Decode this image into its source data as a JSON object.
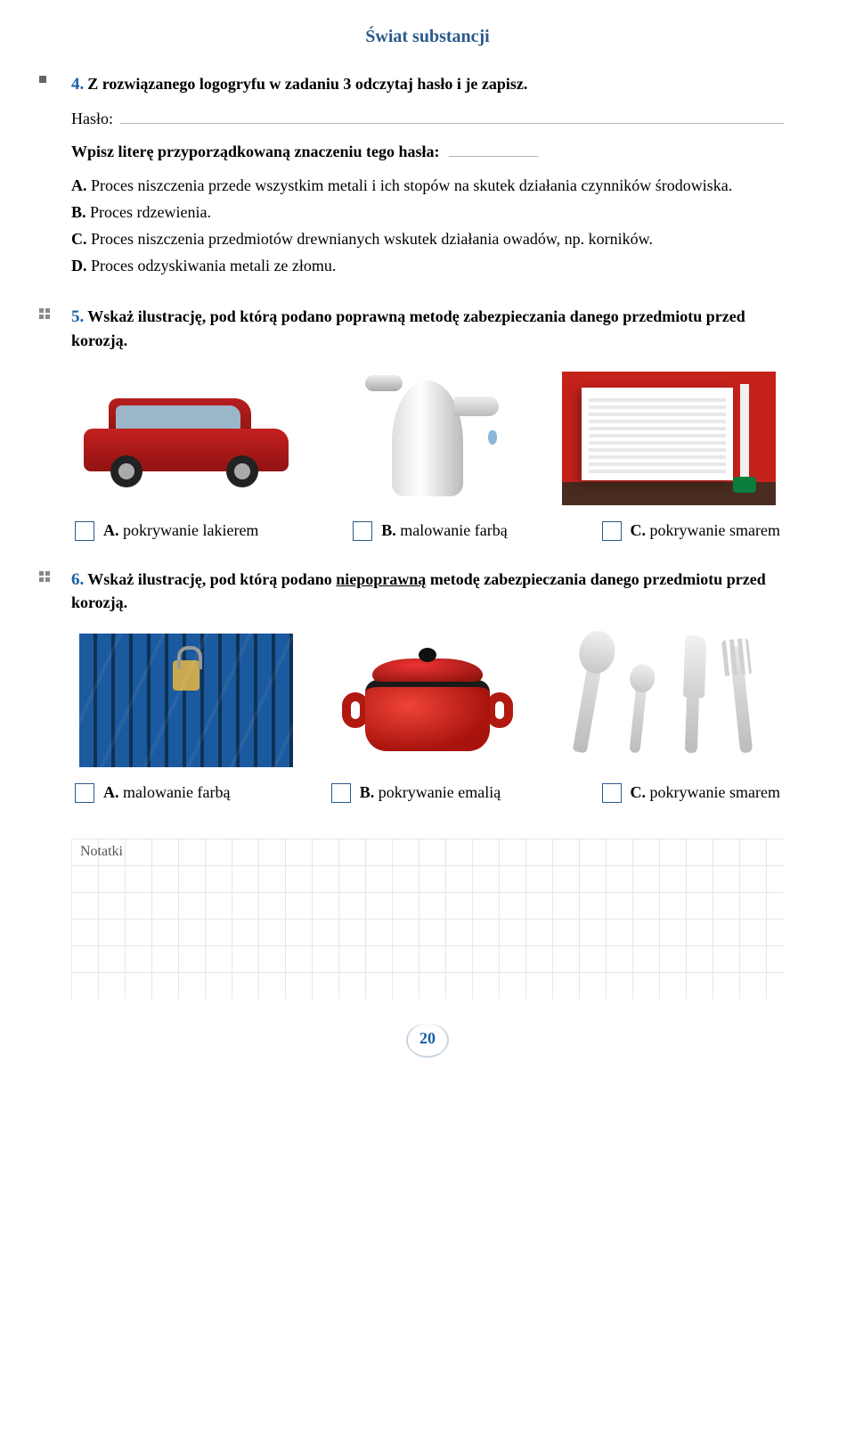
{
  "chapter_title": "Świat substancji",
  "task4": {
    "number": "4.",
    "text": "Z rozwiązanego logogryfu w zadaniu 3 odczytaj hasło i je zapisz.",
    "haslo_label": "Hasło:",
    "wpisz_label": "Wpisz literę przyporządkowaną znaczeniu tego hasła:",
    "options": {
      "A": {
        "letter": "A.",
        "text": "Proces niszczenia przede wszystkim metali i ich stopów na skutek działania czynników środowiska."
      },
      "B": {
        "letter": "B.",
        "text": "Proces rdzewienia."
      },
      "C": {
        "letter": "C.",
        "text": "Proces niszczenia przedmiotów drewnianych wskutek działania owadów, np. korników."
      },
      "D": {
        "letter": "D.",
        "text": "Proces odzyskiwania metali ze złomu."
      }
    }
  },
  "task5": {
    "number": "5.",
    "text": "Wskaż ilustrację, pod którą podano poprawną metodę zabezpieczania danego przedmiotu przed korozją.",
    "choices": {
      "A": {
        "letter": "A.",
        "text": "pokrywanie lakierem"
      },
      "B": {
        "letter": "B.",
        "text": "malowanie farbą"
      },
      "C": {
        "letter": "C.",
        "text": "pokrywanie smarem"
      }
    }
  },
  "task6": {
    "number": "6.",
    "text_pre": "Wskaż ilustrację, pod którą podano ",
    "text_underlined": "niepoprawną",
    "text_post": " metodę zabezpieczania danego przedmiotu przed korozją.",
    "choices": {
      "A": {
        "letter": "A.",
        "text": "malowanie farbą"
      },
      "B": {
        "letter": "B.",
        "text": "pokrywanie emalią"
      },
      "C": {
        "letter": "C.",
        "text": "pokrywanie smarem"
      }
    }
  },
  "notes_label": "Notatki",
  "page_number": "20",
  "colors": {
    "accent_blue": "#1860a8",
    "title_blue": "#2a5a8a",
    "line_gray": "#b0b0c0",
    "grid_gray": "#e6e6ee"
  }
}
